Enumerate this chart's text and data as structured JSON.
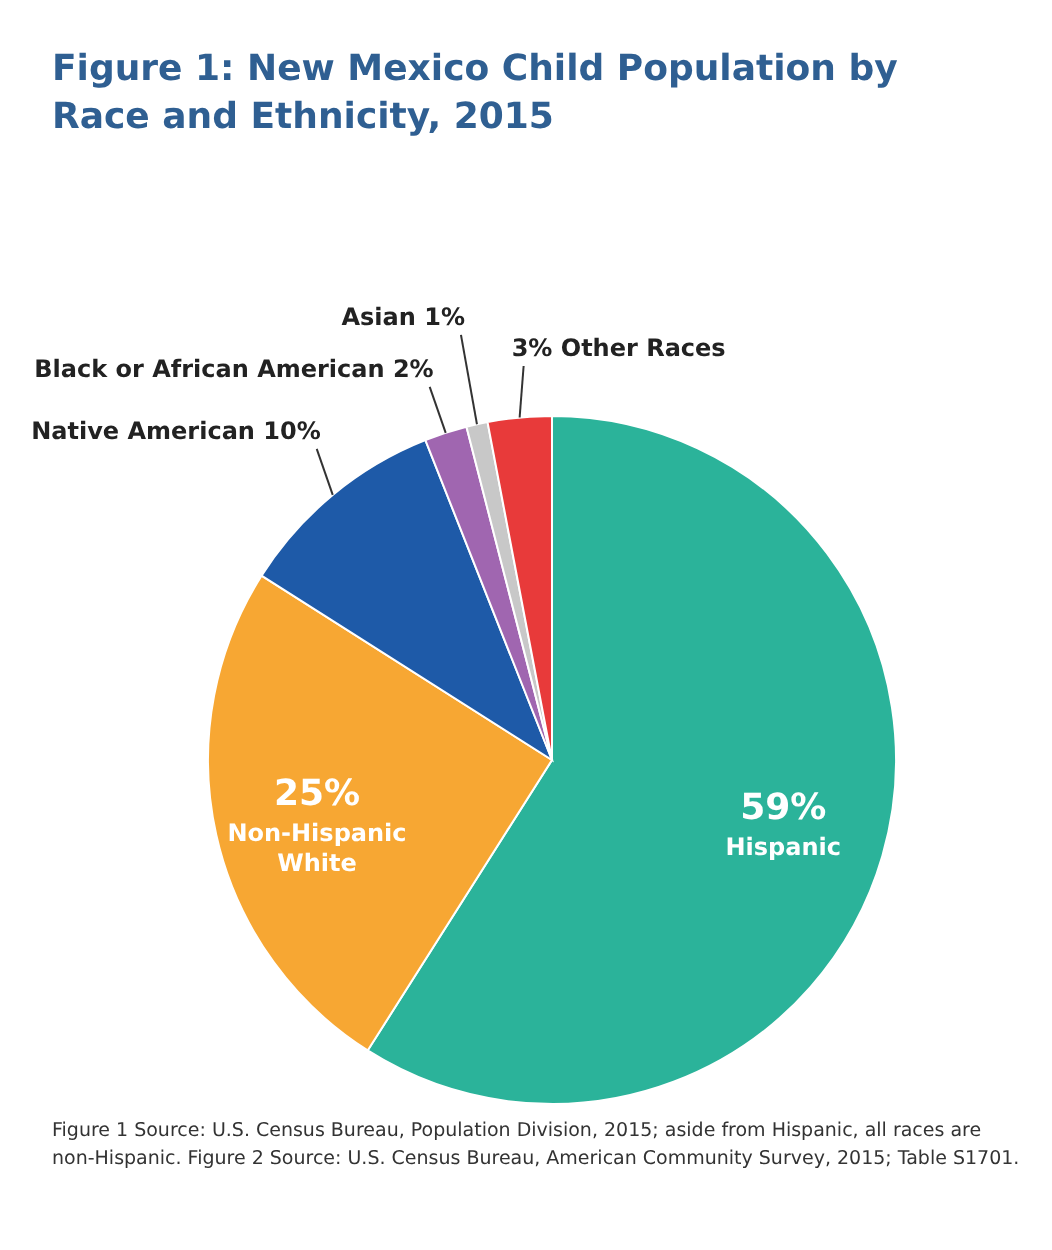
{
  "chart_data": {
    "type": "pie",
    "title": "Figure 1: New Mexico Child Population by Race and Ethnicity, 2015",
    "categories": [
      "Hispanic",
      "Non-Hispanic White",
      "Native American",
      "Black or African American",
      "Asian",
      "Other Races"
    ],
    "values": [
      59,
      25,
      10,
      2,
      1,
      3
    ],
    "value_labels": [
      "59%",
      "25%",
      "10%",
      "2%",
      "1%",
      "3%"
    ],
    "colors": [
      "#2bb39a",
      "#f7a733",
      "#1e5aa8",
      "#a066b0",
      "#c8c8c8",
      "#e83a3a"
    ],
    "annotations": [
      "Figure 1 Source: U.S. Census Bureau, Population Division, 2015; aside from Hispanic, all races are non-Hispanic. Figure 2 Source: U.S. Census Bureau, American Community Survey, 2015; Table S1701."
    ]
  }
}
